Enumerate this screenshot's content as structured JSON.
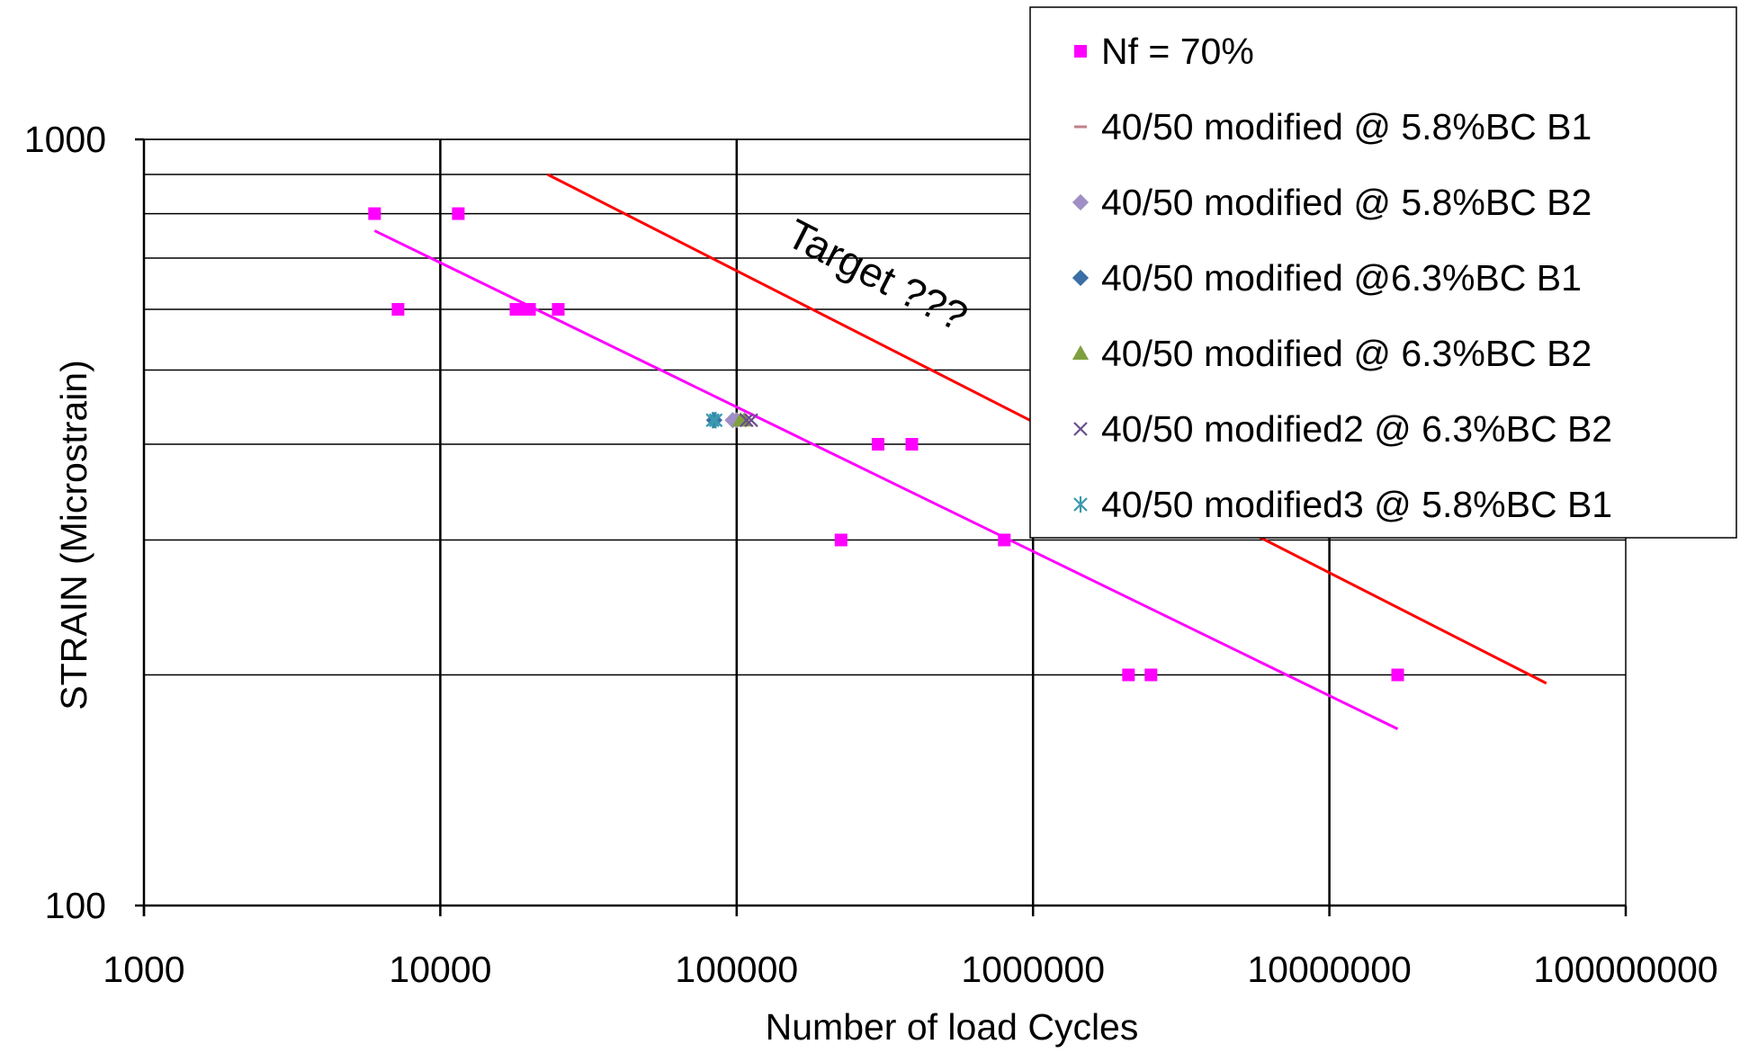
{
  "chart_data": {
    "type": "scatter",
    "x_scale": "log",
    "y_scale": "log",
    "xlabel": "Number of load Cycles",
    "ylabel": "STRAIN (Microstrain)",
    "xlim": [
      1000,
      100000000
    ],
    "ylim": [
      100,
      1000
    ],
    "x_tick_labels": [
      "1000",
      "10000",
      "100000",
      "1000000",
      "10000000",
      "100000000"
    ],
    "y_tick_labels": [
      "100",
      "1000"
    ],
    "grid": true,
    "legend_position": "top-right",
    "series": [
      {
        "name": "Nf = 70%",
        "marker": "square",
        "color": "#ff00ff",
        "points": [
          [
            6000,
            800
          ],
          [
            11500,
            800
          ],
          [
            7200,
            600
          ],
          [
            18000,
            600
          ],
          [
            19500,
            600
          ],
          [
            20000,
            600
          ],
          [
            25000,
            600
          ],
          [
            300000,
            400
          ],
          [
            390000,
            400
          ],
          [
            225000,
            300
          ],
          [
            800000,
            300
          ],
          [
            2100000,
            200
          ],
          [
            2500000,
            200
          ],
          [
            17000000,
            200
          ]
        ]
      },
      {
        "name": "40/50 modified @ 5.8%BC B1",
        "marker": "dash",
        "color": "#c0808a",
        "points": []
      },
      {
        "name": "40/50 modified @ 5.8%BC B2",
        "marker": "diamond",
        "color": "#9f8fc4",
        "points": [
          [
            97000,
            430
          ],
          [
            100000,
            430
          ]
        ]
      },
      {
        "name": "40/50 modified @6.3%BC  B1",
        "marker": "diamond",
        "color": "#3a6ea5",
        "points": [
          [
            84000,
            430
          ]
        ]
      },
      {
        "name": "40/50 modified @ 6.3%BC B2",
        "marker": "triangle",
        "color": "#80a040",
        "points": [
          [
            103000,
            430
          ],
          [
            106000,
            430
          ]
        ]
      },
      {
        "name": "40/50 modified2  @ 6.3%BC B2",
        "marker": "x",
        "color": "#6a4e8c",
        "points": [
          [
            112000,
            430
          ],
          [
            108000,
            430
          ]
        ]
      },
      {
        "name": "40/50 modified3  @ 5.8%BC B1",
        "marker": "asterisk",
        "color": "#3a99b0",
        "points": [
          [
            83000,
            430
          ],
          [
            85000,
            430
          ]
        ]
      }
    ],
    "trendlines": [
      {
        "color": "#ff00ff",
        "points": [
          [
            6000,
            760
          ],
          [
            17000000,
            170
          ]
        ]
      },
      {
        "color": "#ff0000",
        "points": [
          [
            23000,
            900
          ],
          [
            54000000,
            195
          ]
        ]
      }
    ],
    "annotation": {
      "text": "Target ???",
      "color": "#ff0000"
    }
  }
}
